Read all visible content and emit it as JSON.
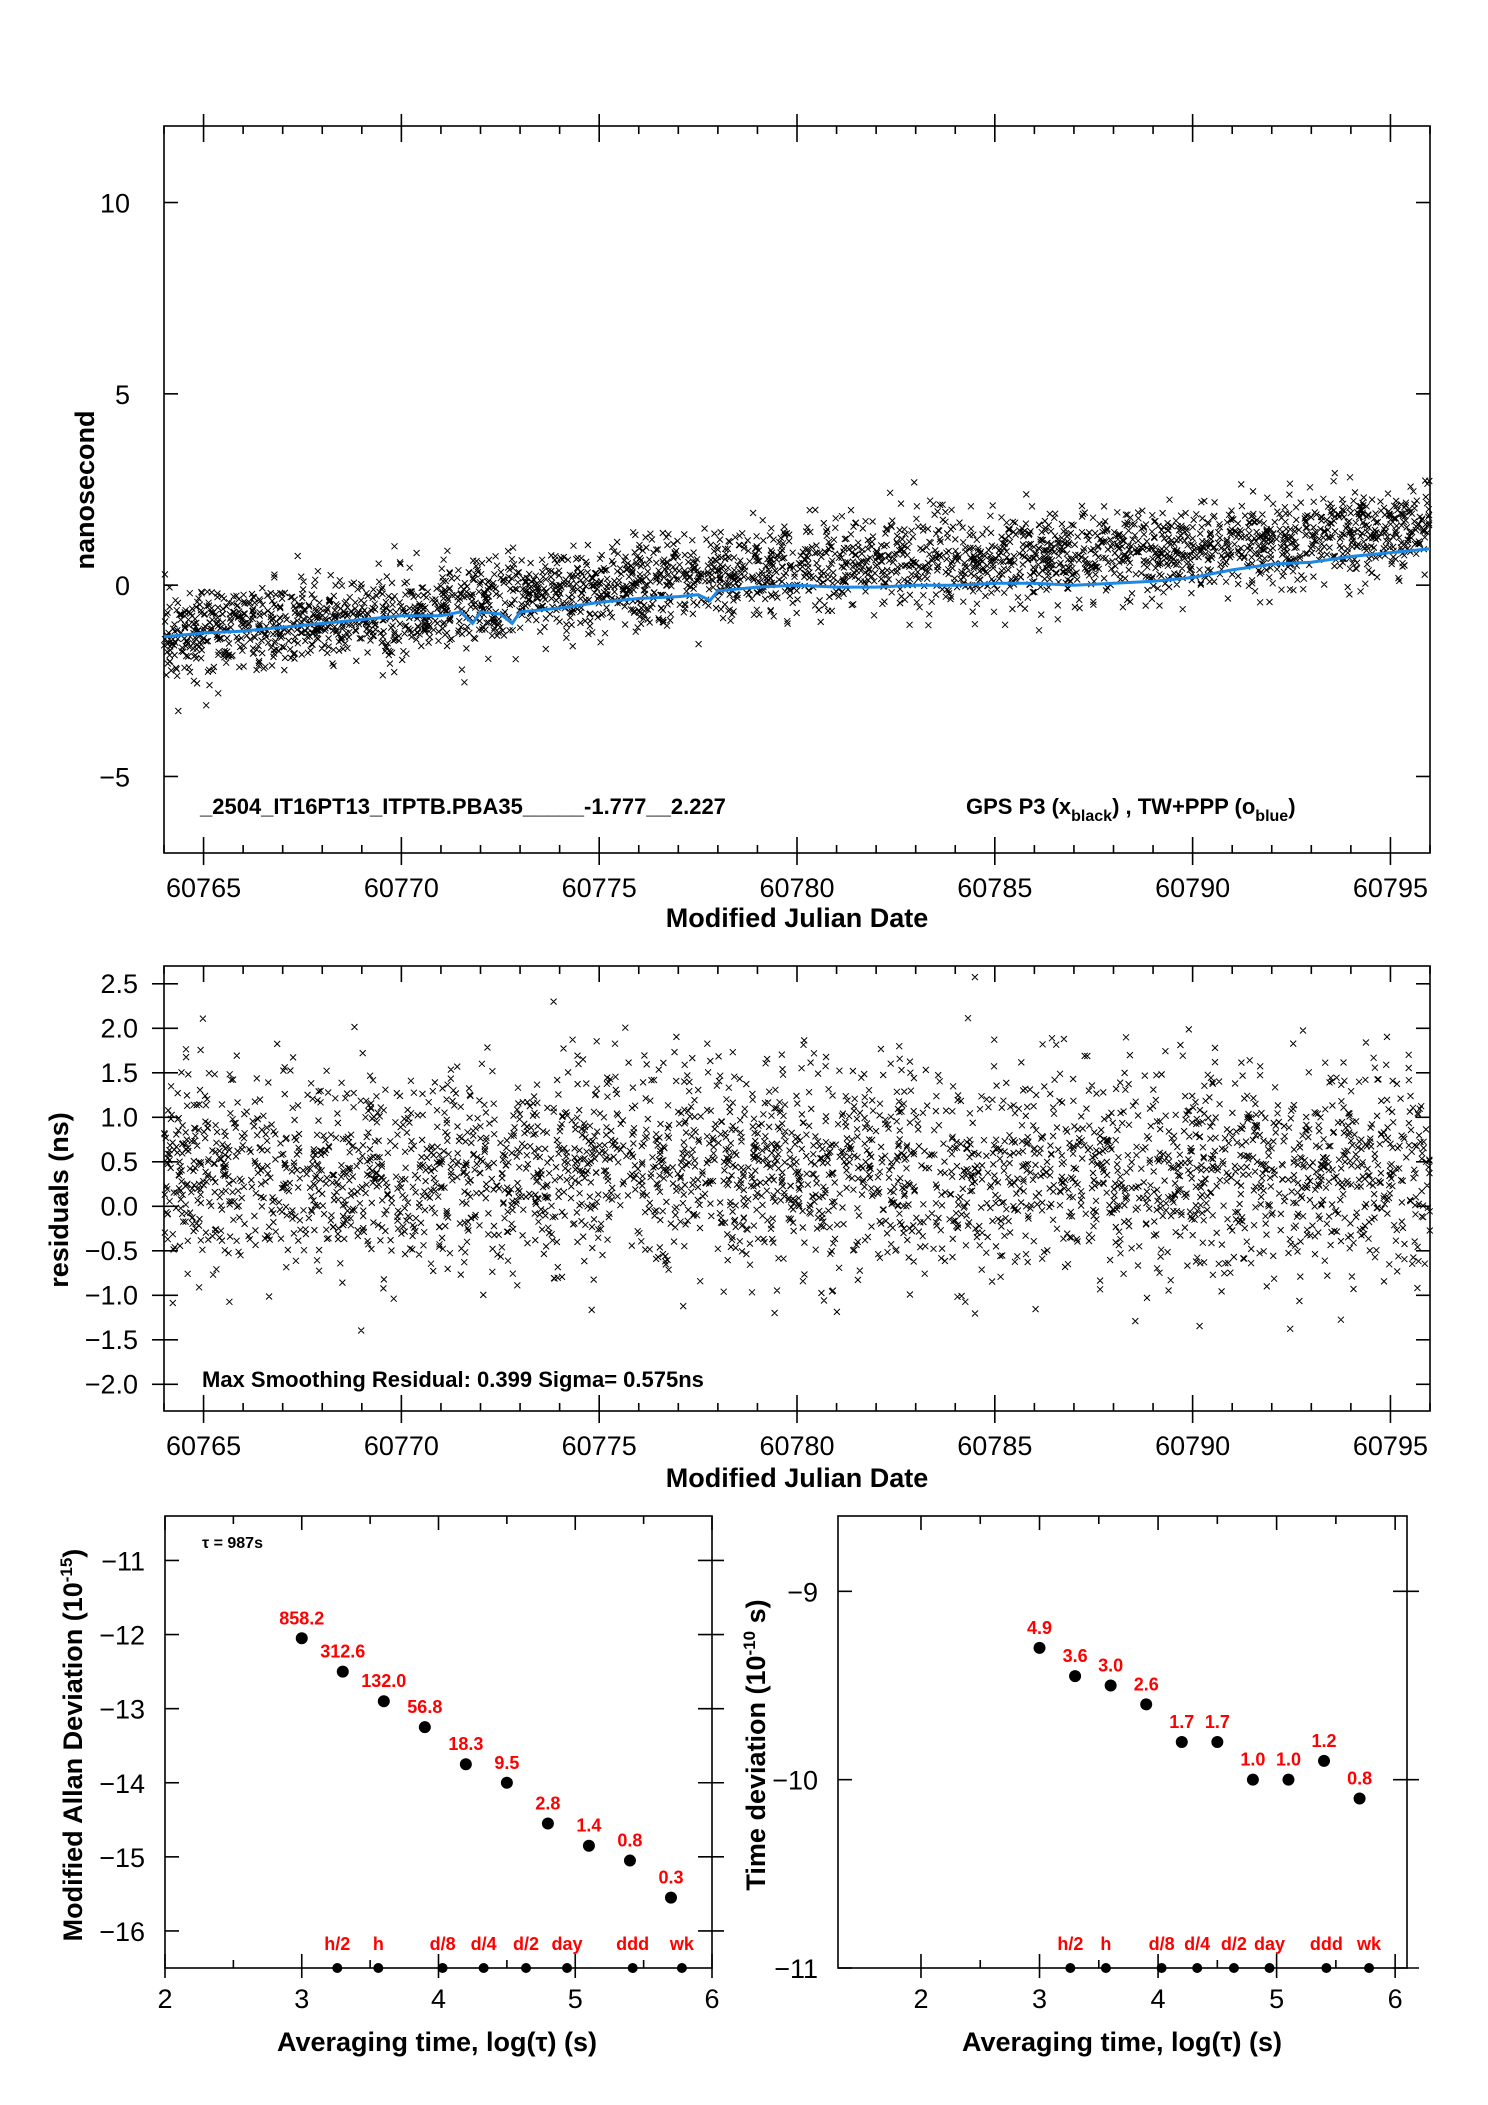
{
  "chart_data": [
    {
      "type": "scatter",
      "ylabel": "nanosecond",
      "xlabel": "Modified Julian Date",
      "xlim": [
        60764,
        60796
      ],
      "ylim": [
        -7,
        12
      ],
      "yticks": [
        -5,
        0,
        5,
        10
      ],
      "xticks": [
        60765,
        60770,
        60775,
        60780,
        60785,
        60790,
        60795
      ],
      "annotation": "_2504_IT16PT13_ITPTB.PBA35_____-1.777__2.227",
      "legend_main": "GPS P3 (x",
      "legend_sub1": "black",
      "legend_mid": ") ,  TW+PPP (o",
      "legend_sub2": "blue",
      "legend_end": ")",
      "colors": {
        "scatter": "#000000",
        "line": "#1e88e5"
      },
      "series": [
        {
          "name": "GPS P3",
          "kind": "scatter-cloud",
          "trend": [
            [
              60764,
              -1.3
            ],
            [
              60770,
              -0.8
            ],
            [
              60775,
              -0.1
            ],
            [
              60780,
              0.5
            ],
            [
              60785,
              0.7
            ],
            [
              60790,
              0.9
            ],
            [
              60796,
              1.5
            ]
          ],
          "spread_sigma": 0.58,
          "density_per_day": 96
        },
        {
          "name": "TW+PPP",
          "kind": "line",
          "x": [
            60764,
            60765,
            60766,
            60767,
            60768,
            60769,
            60770,
            60771,
            60771.5,
            60771.8,
            60772,
            60772.5,
            60772.8,
            60773,
            60774,
            60775,
            60776,
            60777,
            60777.5,
            60777.8,
            60778,
            60779,
            60780,
            60781,
            60782,
            60783,
            60784,
            60785,
            60786,
            60787,
            60788,
            60789,
            60790,
            60791,
            60792,
            60793,
            60794,
            60795,
            60796
          ],
          "y": [
            -1.35,
            -1.25,
            -1.2,
            -1.1,
            -1.0,
            -0.9,
            -0.8,
            -0.8,
            -0.7,
            -1.0,
            -0.7,
            -0.75,
            -1.0,
            -0.7,
            -0.6,
            -0.45,
            -0.35,
            -0.3,
            -0.25,
            -0.4,
            -0.15,
            -0.05,
            0.0,
            -0.05,
            -0.05,
            0.0,
            0.0,
            0.05,
            0.05,
            0.0,
            0.05,
            0.1,
            0.2,
            0.4,
            0.55,
            0.6,
            0.75,
            0.85,
            0.95
          ]
        }
      ]
    },
    {
      "type": "scatter",
      "ylabel": "residuals (ns)",
      "xlabel": "Modified Julian Date",
      "xlim": [
        60764,
        60796
      ],
      "ylim": [
        -2.3,
        2.7
      ],
      "yticks": [
        -2.0,
        -1.5,
        -1.0,
        -0.5,
        0.0,
        0.5,
        1.0,
        1.5,
        2.0,
        2.5
      ],
      "ytick_labels": [
        "−2.0",
        "−1.5",
        "−1.0",
        "−0.5",
        "0.0",
        "0.5",
        "1.0",
        "1.5",
        "2.0",
        "2.5"
      ],
      "xticks": [
        60765,
        60770,
        60775,
        60780,
        60785,
        60790,
        60795
      ],
      "annotation": "Max Smoothing Residual: 0.399  Sigma= 0.575ns",
      "series": [
        {
          "name": "residuals",
          "kind": "scatter-cloud",
          "mean": 0.4,
          "spread_sigma": 0.575,
          "density_per_day": 96
        }
      ]
    },
    {
      "type": "scatter",
      "ylabel": "Modified Allan Deviation (10",
      "ylabel_sup": "-15",
      "ylabel_end": ")",
      "xlabel": "Averaging time, log(τ) (s)",
      "xlim": [
        2,
        6
      ],
      "ylim": [
        -16.5,
        -10.4
      ],
      "yticks": [
        -16,
        -15,
        -14,
        -13,
        -12,
        -11
      ],
      "ytick_labels": [
        "−16",
        "−15",
        "−14",
        "−13",
        "−12",
        "−11"
      ],
      "xticks": [
        2,
        3,
        4,
        5,
        6
      ],
      "tau_note": "τ = 987s",
      "x": [
        3.0,
        3.3,
        3.6,
        3.9,
        4.2,
        4.5,
        4.8,
        5.1,
        5.4,
        5.7
      ],
      "y": [
        -12.05,
        -12.5,
        -12.9,
        -13.25,
        -13.75,
        -14.0,
        -14.55,
        -14.85,
        -15.05,
        -15.55
      ],
      "point_labels": [
        "858.2",
        "312.6",
        "132.0",
        "56.8",
        "18.3",
        "9.5",
        "2.8",
        "1.4",
        "0.8",
        "0.3"
      ],
      "markers": [
        {
          "label": "h/2",
          "x": 3.26
        },
        {
          "label": "h",
          "x": 3.56
        },
        {
          "label": "d/8",
          "x": 4.03
        },
        {
          "label": "d/4",
          "x": 4.33
        },
        {
          "label": "d/2",
          "x": 4.64
        },
        {
          "label": "day",
          "x": 4.94
        },
        {
          "label": "ddd",
          "x": 5.42
        },
        {
          "label": "wk",
          "x": 5.78
        }
      ]
    },
    {
      "type": "scatter",
      "ylabel": "Time deviation (10",
      "ylabel_sup": "-10",
      "ylabel_end": " s)",
      "xlabel": "Averaging time, log(τ) (s)",
      "xlim": [
        1.3,
        6.1
      ],
      "ylim": [
        -11.0,
        -8.6
      ],
      "yticks": [
        -11,
        -10,
        -9
      ],
      "ytick_labels": [
        "−11",
        "−10",
        "−9"
      ],
      "xticks": [
        2,
        3,
        4,
        5,
        6
      ],
      "x": [
        3.0,
        3.3,
        3.6,
        3.9,
        4.2,
        4.5,
        4.8,
        5.1,
        5.4,
        5.7
      ],
      "y": [
        -9.3,
        -9.45,
        -9.5,
        -9.6,
        -9.8,
        -9.8,
        -10.0,
        -10.0,
        -9.9,
        -10.1
      ],
      "point_labels": [
        "4.9",
        "3.6",
        "3.0",
        "2.6",
        "1.7",
        "1.7",
        "1.0",
        "1.0",
        "1.2",
        "0.8"
      ],
      "markers": [
        {
          "label": "h/2",
          "x": 3.26
        },
        {
          "label": "h",
          "x": 3.56
        },
        {
          "label": "d/8",
          "x": 4.03
        },
        {
          "label": "d/4",
          "x": 4.33
        },
        {
          "label": "d/2",
          "x": 4.64
        },
        {
          "label": "day",
          "x": 4.94
        },
        {
          "label": "ddd",
          "x": 5.42
        },
        {
          "label": "wk",
          "x": 5.78
        }
      ]
    }
  ]
}
